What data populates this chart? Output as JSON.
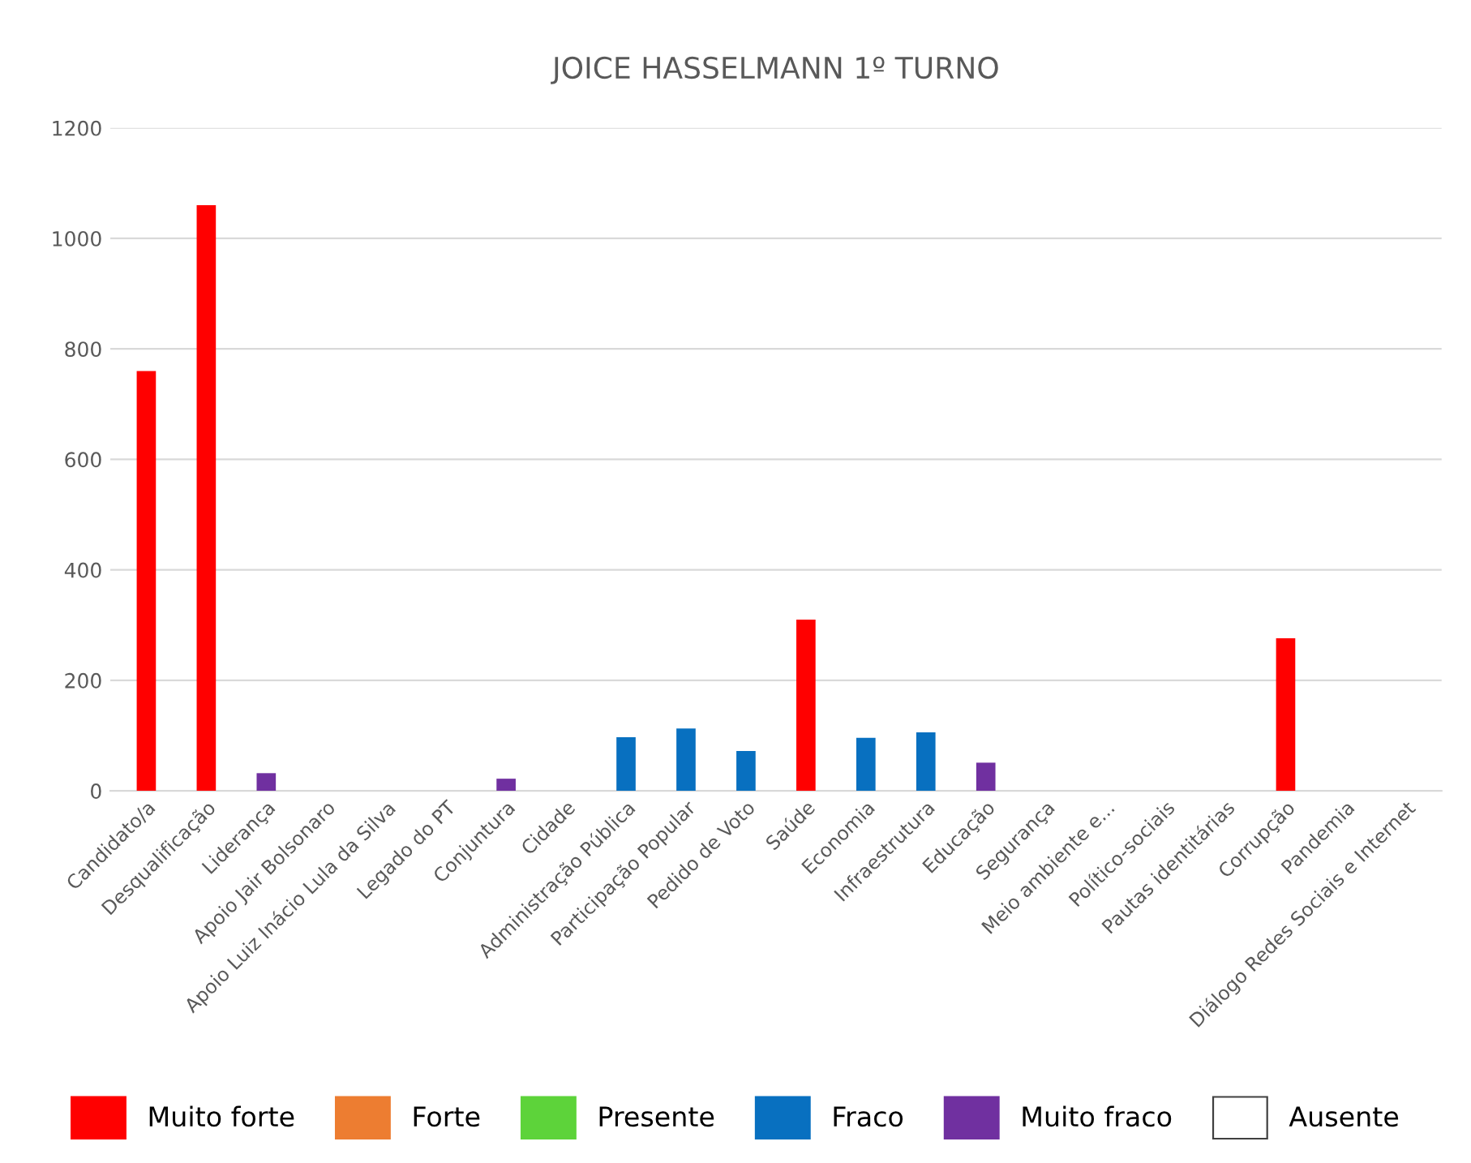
{
  "chart_data": {
    "type": "bar",
    "title": "JOICE HASSELMANN 1º TURNO",
    "grid": "y",
    "legend": "bottom",
    "categories": [
      "Candidato/a",
      "Desqualificação",
      "Liderança",
      "Apoio Jair Bolsonaro",
      "Apoio Luiz Inácio Lula da Silva",
      "Legado do PT",
      "Conjuntura",
      "Cidade",
      "Administração Pública",
      "Participação Popular",
      "Pedido de Voto",
      "Saúde",
      "Economia",
      "Infraestrutura",
      "Educação",
      "Segurança",
      "Meio ambiente e...",
      "Político-sociais",
      "Pautas identitárias",
      "Corrupção",
      "Pandemia",
      "Diálogo Redes Sociais e Internet"
    ],
    "series": [
      {
        "name": "Muito forte",
        "color": "#ff0000",
        "values": [
          760,
          1060,
          null,
          null,
          null,
          null,
          null,
          null,
          null,
          null,
          null,
          310,
          null,
          null,
          null,
          null,
          null,
          null,
          null,
          276,
          null,
          null
        ]
      },
      {
        "name": "Forte",
        "color": "#ed7d31",
        "values": [
          null,
          null,
          null,
          null,
          null,
          null,
          null,
          null,
          null,
          null,
          null,
          null,
          null,
          null,
          null,
          null,
          null,
          null,
          null,
          null,
          null,
          null
        ]
      },
      {
        "name": "Presente",
        "color": "#5dd33a",
        "values": [
          null,
          null,
          null,
          null,
          null,
          null,
          null,
          null,
          null,
          null,
          null,
          null,
          null,
          null,
          null,
          null,
          null,
          null,
          null,
          null,
          null,
          null
        ]
      },
      {
        "name": "Fraco",
        "color": "#0870c0",
        "values": [
          null,
          null,
          null,
          null,
          null,
          null,
          null,
          null,
          97,
          113,
          72,
          null,
          96,
          106,
          null,
          null,
          null,
          null,
          null,
          null,
          null,
          null
        ]
      },
      {
        "name": "Muito fraco",
        "color": "#7030a0",
        "values": [
          null,
          null,
          32,
          null,
          null,
          null,
          22,
          null,
          null,
          null,
          null,
          null,
          null,
          null,
          51,
          null,
          null,
          null,
          null,
          null,
          null,
          null
        ]
      },
      {
        "name": "Ausente",
        "color": "#ffffff",
        "values": [
          null,
          null,
          null,
          null,
          null,
          null,
          null,
          null,
          null,
          null,
          null,
          null,
          null,
          null,
          null,
          null,
          null,
          null,
          null,
          null,
          null,
          null
        ]
      }
    ],
    "ylim": [
      0,
      1200
    ],
    "yticks": [
      0,
      200,
      400,
      600,
      800,
      1000,
      1200
    ]
  }
}
